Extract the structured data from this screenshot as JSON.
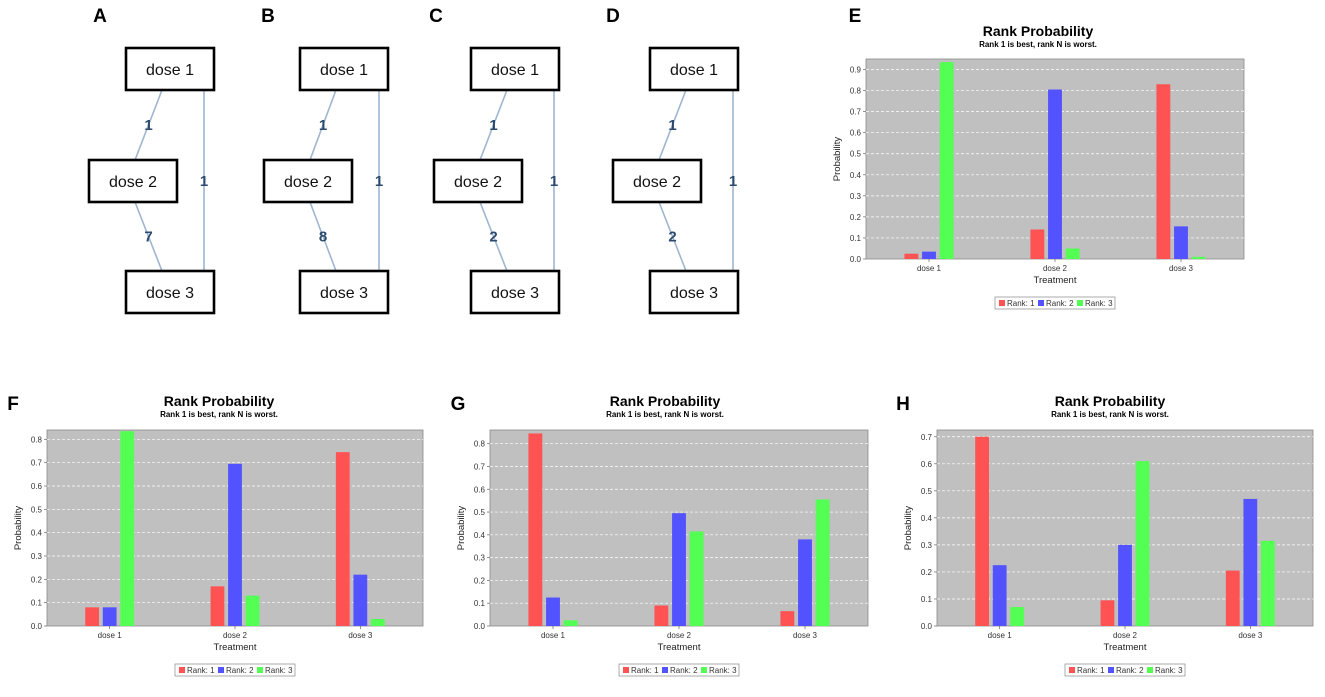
{
  "networks": [
    {
      "letter": "A",
      "nodes": [
        "dose 1",
        "dose 2",
        "dose 3"
      ],
      "edges": {
        "d1_d2": "1",
        "d2_d3": "7",
        "d1_d3": "1"
      }
    },
    {
      "letter": "B",
      "nodes": [
        "dose 1",
        "dose 2",
        "dose 3"
      ],
      "edges": {
        "d1_d2": "1",
        "d2_d3": "8",
        "d1_d3": "1"
      }
    },
    {
      "letter": "C",
      "nodes": [
        "dose 1",
        "dose 2",
        "dose 3"
      ],
      "edges": {
        "d1_d2": "1",
        "d2_d3": "2",
        "d1_d3": "1"
      }
    },
    {
      "letter": "D",
      "nodes": [
        "dose 1",
        "dose 2",
        "dose 3"
      ],
      "edges": {
        "d1_d2": "1",
        "d2_d3": "2",
        "d1_d3": "1"
      }
    }
  ],
  "colors": {
    "rank1": "#ff5252",
    "rank2": "#5252ff",
    "rank3": "#52ff52"
  },
  "chart_data": [
    {
      "letter": "E",
      "type": "bar",
      "title": "Rank Probability",
      "subtitle": "Rank 1 is best, rank N is worst.",
      "xlabel": "Treatment",
      "ylabel": "Probability",
      "categories": [
        "dose 1",
        "dose 2",
        "dose 3"
      ],
      "ylim": [
        0,
        0.95
      ],
      "yticks": [
        "0.0",
        "0.1",
        "0.2",
        "0.3",
        "0.4",
        "0.5",
        "0.6",
        "0.7",
        "0.8",
        "0.9"
      ],
      "series": [
        {
          "name": "Rank: 1",
          "values": [
            0.025,
            0.14,
            0.83
          ]
        },
        {
          "name": "Rank: 2",
          "values": [
            0.035,
            0.805,
            0.155
          ]
        },
        {
          "name": "Rank: 3",
          "values": [
            0.935,
            0.05,
            0.01
          ]
        }
      ]
    },
    {
      "letter": "F",
      "type": "bar",
      "title": "Rank Probability",
      "subtitle": "Rank 1 is best, rank N is worst.",
      "xlabel": "Treatment",
      "ylabel": "Probability",
      "categories": [
        "dose 1",
        "dose 2",
        "dose 3"
      ],
      "ylim": [
        0,
        0.84
      ],
      "yticks": [
        "0.0",
        "0.1",
        "0.2",
        "0.3",
        "0.4",
        "0.5",
        "0.6",
        "0.7",
        "0.8"
      ],
      "series": [
        {
          "name": "Rank: 1",
          "values": [
            0.08,
            0.17,
            0.745
          ]
        },
        {
          "name": "Rank: 2",
          "values": [
            0.08,
            0.695,
            0.22
          ]
        },
        {
          "name": "Rank: 3",
          "values": [
            0.835,
            0.13,
            0.03
          ]
        }
      ]
    },
    {
      "letter": "G",
      "type": "bar",
      "title": "Rank Probability",
      "subtitle": "Rank 1 is best, rank N is worst.",
      "xlabel": "Treatment",
      "ylabel": "Probability",
      "categories": [
        "dose 1",
        "dose 2",
        "dose 3"
      ],
      "ylim": [
        0,
        0.86
      ],
      "yticks": [
        "0.0",
        "0.1",
        "0.2",
        "0.3",
        "0.4",
        "0.5",
        "0.6",
        "0.7",
        "0.8"
      ],
      "series": [
        {
          "name": "Rank: 1",
          "values": [
            0.845,
            0.09,
            0.065
          ]
        },
        {
          "name": "Rank: 2",
          "values": [
            0.125,
            0.495,
            0.38
          ]
        },
        {
          "name": "Rank: 3",
          "values": [
            0.025,
            0.415,
            0.555
          ]
        }
      ]
    },
    {
      "letter": "H",
      "type": "bar",
      "title": "Rank Probability",
      "subtitle": "Rank 1 is best, rank N is worst.",
      "xlabel": "Treatment",
      "ylabel": "Probability",
      "categories": [
        "dose 1",
        "dose 2",
        "dose 3"
      ],
      "ylim": [
        0,
        0.725
      ],
      "yticks": [
        "0.0",
        "0.1",
        "0.2",
        "0.3",
        "0.4",
        "0.5",
        "0.6",
        "0.7"
      ],
      "series": [
        {
          "name": "Rank: 1",
          "values": [
            0.7,
            0.095,
            0.205
          ]
        },
        {
          "name": "Rank: 2",
          "values": [
            0.225,
            0.3,
            0.47
          ]
        },
        {
          "name": "Rank: 3",
          "values": [
            0.07,
            0.61,
            0.315
          ]
        }
      ]
    }
  ]
}
